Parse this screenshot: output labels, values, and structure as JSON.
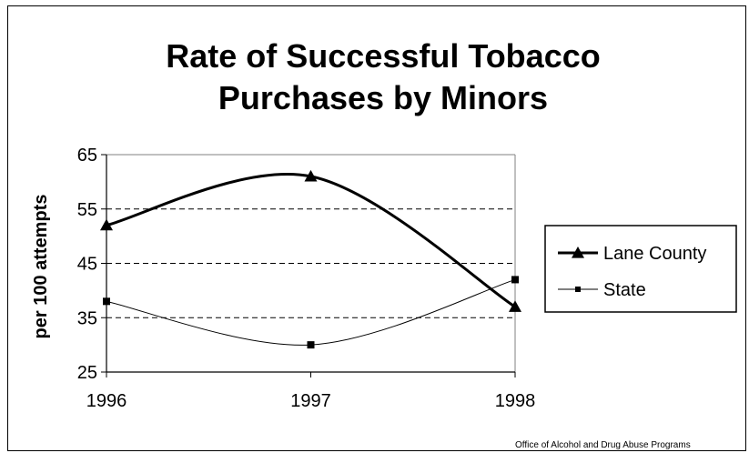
{
  "chart_data": {
    "type": "line",
    "title": "Rate of Successful Tobacco Purchases by Minors",
    "title_lines": [
      "Rate of Successful Tobacco",
      "Purchases by Minors"
    ],
    "ylabel": "per 100 attempts",
    "xlabel": "",
    "x": [
      "1996",
      "1997",
      "1998"
    ],
    "ylim": [
      25,
      65
    ],
    "yticks": [
      25,
      35,
      45,
      55,
      65
    ],
    "grid": "horizontal dashed",
    "legend": "right",
    "series": [
      {
        "name": "Lane County",
        "values": [
          52,
          61,
          37
        ],
        "marker": "triangle",
        "line": "thick",
        "smooth": true,
        "color": "#000000"
      },
      {
        "name": "State",
        "values": [
          38,
          30,
          42
        ],
        "marker": "square",
        "line": "thin",
        "smooth": true,
        "color": "#000000"
      }
    ]
  },
  "footer": {
    "credit": "Office of Alcohol and Drug Abuse Programs"
  }
}
